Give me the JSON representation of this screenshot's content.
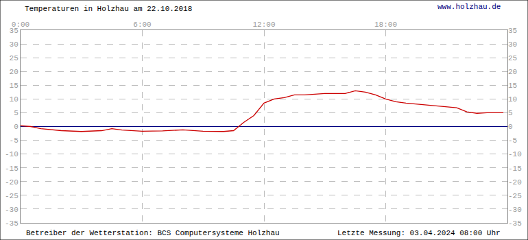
{
  "chart_data": {
    "type": "line",
    "title": "Temperaturen in Holzhau am 22.10.2018",
    "annotations": [
      "www.holzhau.de",
      "Betreiber der Wetterstation: BCS Computersysteme Holzhau",
      "Letzte Messung: 03.04.2024 08:00 Uhr"
    ],
    "x": [
      0,
      0.5,
      1,
      2,
      3,
      4,
      4.5,
      5,
      6,
      7,
      8,
      9,
      10,
      10.5,
      11,
      11.5,
      12,
      12.5,
      13,
      13.5,
      14,
      15,
      16,
      16.5,
      17,
      17.5,
      18,
      18.5,
      19,
      20,
      20.5,
      21,
      21.5,
      22,
      22.5,
      23,
      23.8
    ],
    "series": [
      {
        "name": "Temperatur",
        "color": "#cc0000",
        "values": [
          0.3,
          0,
          -0.8,
          -1.5,
          -1.8,
          -1.5,
          -0.8,
          -1.3,
          -1.7,
          -1.6,
          -1.2,
          -1.7,
          -1.8,
          -1.5,
          1.5,
          4,
          8.5,
          10,
          10.5,
          11.5,
          11.5,
          12,
          12,
          13,
          12.5,
          11.5,
          10,
          9,
          8.5,
          7.8,
          7.5,
          7.2,
          6.8,
          5.3,
          4.8,
          5,
          5
        ]
      }
    ],
    "xlim": [
      0,
      24
    ],
    "xticks": [
      {
        "value": 0,
        "label": "0:00"
      },
      {
        "value": 6,
        "label": "6:00"
      },
      {
        "value": 12,
        "label": "12:00"
      },
      {
        "value": 18,
        "label": "18:00"
      }
    ],
    "ylim": [
      -35,
      35
    ],
    "yticks": [
      -35,
      -30,
      -25,
      -20,
      -15,
      -10,
      -5,
      0,
      5,
      10,
      15,
      20,
      25,
      30,
      35
    ],
    "grid": true
  }
}
